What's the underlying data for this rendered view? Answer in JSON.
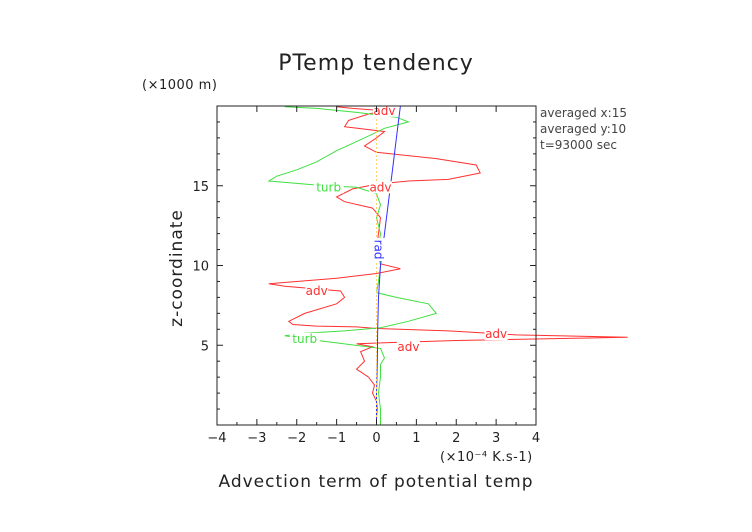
{
  "chart_data": {
    "type": "line",
    "title": "PTemp tendency",
    "xlabel": "Advection term of potential temp",
    "ylabel": "z-coordinate",
    "x_unit": "(×10⁻⁴ K.s-1)",
    "y_unit": "(×1000 m)",
    "xlim": [
      -4,
      4
    ],
    "ylim": [
      0,
      20
    ],
    "x_ticks": [
      -4,
      -3,
      -2,
      -1,
      0,
      1,
      2,
      3,
      4
    ],
    "y_ticks": [
      5,
      10,
      15
    ],
    "info": [
      "averaged  x:15",
      "averaged  y:10",
      "t=93000 sec"
    ],
    "series": [
      {
        "name": "adv",
        "color": "#ff3030",
        "points": [
          [
            0.0,
            0.0
          ],
          [
            0.0,
            0.5
          ],
          [
            0.02,
            1.0
          ],
          [
            0.0,
            1.5
          ],
          [
            -0.1,
            2.0
          ],
          [
            -0.05,
            2.5
          ],
          [
            -0.2,
            3.0
          ],
          [
            -0.5,
            3.5
          ],
          [
            -0.3,
            4.0
          ],
          [
            -0.4,
            4.6
          ],
          [
            -0.1,
            4.9
          ],
          [
            -0.5,
            5.1
          ],
          [
            2.0,
            5.3
          ],
          [
            6.3,
            5.5
          ],
          [
            3.5,
            5.65
          ],
          [
            2.5,
            5.8
          ],
          [
            1.8,
            5.9
          ],
          [
            0.0,
            6.05
          ],
          [
            -0.5,
            6.15
          ],
          [
            -1.5,
            6.2
          ],
          [
            -2.1,
            6.3
          ],
          [
            -2.2,
            6.5
          ],
          [
            -1.8,
            7.0
          ],
          [
            -1.0,
            7.6
          ],
          [
            -0.8,
            8.0
          ],
          [
            -0.9,
            8.4
          ],
          [
            -2.3,
            8.7
          ],
          [
            -2.7,
            8.85
          ],
          [
            -1.0,
            9.2
          ],
          [
            0.0,
            9.5
          ],
          [
            0.6,
            9.8
          ],
          [
            0.1,
            10.1
          ],
          [
            0.0,
            11.0
          ],
          [
            0.05,
            12.0
          ],
          [
            0.1,
            13.0
          ],
          [
            -0.1,
            13.6
          ],
          [
            -0.8,
            14.0
          ],
          [
            -1.0,
            14.3
          ],
          [
            -0.6,
            14.8
          ],
          [
            0.0,
            15.1
          ],
          [
            0.8,
            15.3
          ],
          [
            1.8,
            15.4
          ],
          [
            2.6,
            15.8
          ],
          [
            2.5,
            16.3
          ],
          [
            1.5,
            16.7
          ],
          [
            0.0,
            17.1
          ],
          [
            -0.3,
            17.5
          ],
          [
            0.0,
            18.0
          ],
          [
            0.2,
            18.4
          ],
          [
            -0.8,
            18.7
          ],
          [
            -0.7,
            19.1
          ],
          [
            -0.2,
            19.5
          ],
          [
            0.2,
            19.7
          ],
          [
            -0.6,
            19.85
          ],
          [
            -1.0,
            19.95
          ]
        ]
      },
      {
        "name": "turb",
        "color": "#40e040",
        "points": [
          [
            0.1,
            0.0
          ],
          [
            0.1,
            1.0
          ],
          [
            0.05,
            2.0
          ],
          [
            0.1,
            3.0
          ],
          [
            0.1,
            3.8
          ],
          [
            0.2,
            4.2
          ],
          [
            0.1,
            4.8
          ],
          [
            -1.0,
            5.15
          ],
          [
            -1.8,
            5.4
          ],
          [
            -2.3,
            5.6
          ],
          [
            -1.8,
            5.75
          ],
          [
            -0.8,
            5.9
          ],
          [
            0.1,
            6.1
          ],
          [
            0.8,
            6.5
          ],
          [
            1.5,
            7.0
          ],
          [
            1.3,
            7.6
          ],
          [
            0.5,
            8.0
          ],
          [
            0.0,
            8.3
          ],
          [
            0.05,
            9.0
          ],
          [
            0.1,
            10.0
          ],
          [
            0.05,
            11.0
          ],
          [
            0.1,
            12.0
          ],
          [
            0.0,
            13.0
          ],
          [
            0.1,
            13.8
          ],
          [
            0.0,
            14.5
          ],
          [
            -0.5,
            14.9
          ],
          [
            -1.3,
            15.0
          ],
          [
            -2.7,
            15.3
          ],
          [
            -2.5,
            15.6
          ],
          [
            -2.0,
            16.0
          ],
          [
            -1.5,
            16.5
          ],
          [
            -1.0,
            17.2
          ],
          [
            -0.3,
            18.0
          ],
          [
            0.2,
            18.6
          ],
          [
            0.8,
            19.0
          ],
          [
            0.5,
            19.3
          ],
          [
            -0.5,
            19.6
          ],
          [
            -1.5,
            19.85
          ],
          [
            -2.3,
            19.95
          ]
        ]
      },
      {
        "name": "rad",
        "color": "#3030ff",
        "points": [
          [
            0.0,
            0.0
          ],
          [
            0.0,
            2.0
          ],
          [
            0.02,
            4.0
          ],
          [
            0.03,
            6.0
          ],
          [
            0.05,
            8.0
          ],
          [
            0.1,
            10.0
          ],
          [
            0.2,
            12.0
          ],
          [
            0.3,
            14.0
          ],
          [
            0.4,
            16.0
          ],
          [
            0.5,
            18.0
          ],
          [
            0.6,
            20.0
          ]
        ]
      },
      {
        "name": "",
        "color": "#ffd070",
        "dashed": true,
        "points": [
          [
            0.0,
            0.0
          ],
          [
            0.0,
            20.0
          ]
        ]
      }
    ],
    "line_labels": [
      {
        "text": "adv",
        "series": 0,
        "x": 0.2,
        "y": 19.7
      },
      {
        "text": "adv",
        "series": 0,
        "x": 0.1,
        "y": 14.9
      },
      {
        "text": "adv",
        "series": 0,
        "x": -1.5,
        "y": 8.4
      },
      {
        "text": "adv",
        "series": 0,
        "x": 3.0,
        "y": 5.7
      },
      {
        "text": "adv",
        "series": 0,
        "x": 0.8,
        "y": 4.9
      },
      {
        "text": "turb",
        "series": 1,
        "x": -1.2,
        "y": 14.9
      },
      {
        "text": "turb",
        "series": 1,
        "x": -1.8,
        "y": 5.4
      },
      {
        "text": "rad",
        "series": 2,
        "x": 0.05,
        "y": 11.0,
        "rotate": 90
      }
    ]
  }
}
